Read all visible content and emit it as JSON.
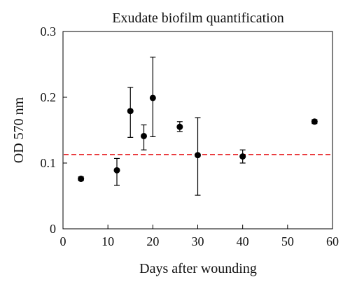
{
  "chart_data": {
    "type": "scatter",
    "title": "Exudate biofilm quantification",
    "xlabel": "Days after wounding",
    "ylabel": "OD 570 nm",
    "xlim": [
      0,
      60
    ],
    "ylim": [
      0,
      0.3
    ],
    "x_ticks": [
      0,
      10,
      20,
      30,
      40,
      50,
      60
    ],
    "x_tick_labels": [
      "0",
      "10",
      "20",
      "30",
      "40",
      "50",
      "60"
    ],
    "y_ticks": [
      0,
      0.1,
      0.2,
      0.3
    ],
    "y_tick_labels": [
      "0",
      "0.1",
      "0.2",
      "0.3"
    ],
    "grid": false,
    "marker_color": "#000000",
    "points": [
      {
        "x": 4,
        "y": 0.076,
        "err_low": 0.073,
        "err_high": 0.079
      },
      {
        "x": 12,
        "y": 0.089,
        "err_low": 0.066,
        "err_high": 0.107
      },
      {
        "x": 15,
        "y": 0.179,
        "err_low": 0.139,
        "err_high": 0.215
      },
      {
        "x": 18,
        "y": 0.141,
        "err_low": 0.12,
        "err_high": 0.158
      },
      {
        "x": 20,
        "y": 0.199,
        "err_low": 0.14,
        "err_high": 0.261
      },
      {
        "x": 26,
        "y": 0.155,
        "err_low": 0.148,
        "err_high": 0.163
      },
      {
        "x": 30,
        "y": 0.112,
        "err_low": 0.051,
        "err_high": 0.169
      },
      {
        "x": 40,
        "y": 0.11,
        "err_low": 0.1,
        "err_high": 0.12
      },
      {
        "x": 56,
        "y": 0.163,
        "err_low": 0.16,
        "err_high": 0.166
      }
    ],
    "reference_line": {
      "y": 0.113,
      "color": "#e8262a",
      "style": "dashed"
    }
  }
}
